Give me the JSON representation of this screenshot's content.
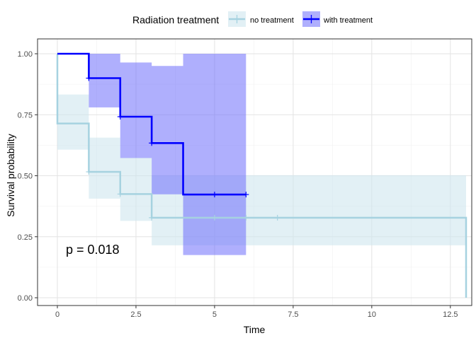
{
  "chart_data": {
    "type": "line",
    "subtype": "kaplan-meier step curve with confidence bands",
    "xlabel": "Time",
    "ylabel": "Survival probability",
    "xlim": [
      0,
      13
    ],
    "ylim": [
      0,
      1
    ],
    "x_ticks": [
      0,
      2.5,
      5,
      7.5,
      10,
      12.5
    ],
    "x_tick_labels": [
      "0",
      "2.5",
      "5",
      "7.5",
      "10",
      "12.5"
    ],
    "y_ticks": [
      0,
      0.25,
      0.5,
      0.75,
      1
    ],
    "y_tick_labels": [
      "0.00",
      "0.25",
      "0.50",
      "0.75",
      "1.00"
    ],
    "grid": true,
    "legend": {
      "title": "Radiation treatment",
      "position": "top"
    },
    "annotation": "p = 0.018",
    "series": [
      {
        "name": "no treatment",
        "color": "#a6d2e0",
        "band_color": "#cfe6ee",
        "steps": [
          {
            "x": 0,
            "y": 1.0,
            "lower": 1.0,
            "upper": 1.0
          },
          {
            "x": 0,
            "y": 0.714,
            "lower": 0.607,
            "upper": 0.833
          },
          {
            "x": 1,
            "y": 0.516,
            "lower": 0.406,
            "upper": 0.656
          },
          {
            "x": 2,
            "y": 0.425,
            "lower": 0.315,
            "upper": 0.574
          },
          {
            "x": 3,
            "y": 0.328,
            "lower": 0.215,
            "upper": 0.502
          },
          {
            "x": 13,
            "y": 0.0,
            "lower": 0.0,
            "upper": 0.0
          }
        ],
        "end_x": 13,
        "censored": [
          {
            "x": 1,
            "y": 0.516
          },
          {
            "x": 2,
            "y": 0.425
          },
          {
            "x": 3,
            "y": 0.328
          },
          {
            "x": 5,
            "y": 0.328
          },
          {
            "x": 6,
            "y": 0.328
          },
          {
            "x": 7,
            "y": 0.328
          }
        ]
      },
      {
        "name": "with treatment",
        "color": "#0000ff",
        "band_color": "#6d6dfc",
        "steps": [
          {
            "x": 0,
            "y": 1.0,
            "lower": 1.0,
            "upper": 1.0
          },
          {
            "x": 1,
            "y": 0.9,
            "lower": 0.78,
            "upper": 1.0
          },
          {
            "x": 2,
            "y": 0.742,
            "lower": 0.573,
            "upper": 0.964
          },
          {
            "x": 3,
            "y": 0.634,
            "lower": 0.424,
            "upper": 0.95
          },
          {
            "x": 4,
            "y": 0.423,
            "lower": 0.175,
            "upper": 1.0
          }
        ],
        "end_x": 6,
        "censored": [
          {
            "x": 1,
            "y": 0.9
          },
          {
            "x": 2,
            "y": 0.742
          },
          {
            "x": 3,
            "y": 0.634
          },
          {
            "x": 5,
            "y": 0.423
          },
          {
            "x": 6,
            "y": 0.423
          }
        ]
      }
    ]
  }
}
